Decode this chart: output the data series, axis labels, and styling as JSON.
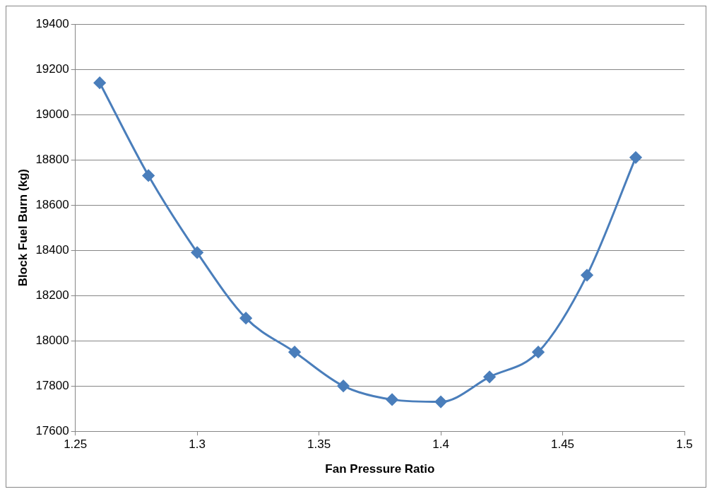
{
  "chart_data": {
    "type": "line",
    "xlabel": "Fan Pressure Ratio",
    "ylabel": "Block Fuel Burn (kg)",
    "x": [
      1.26,
      1.28,
      1.3,
      1.32,
      1.34,
      1.36,
      1.38,
      1.4,
      1.42,
      1.44,
      1.46,
      1.48
    ],
    "series": [
      {
        "color": "#4a7ebb",
        "values": [
          19140,
          18730,
          18390,
          18100,
          17950,
          17800,
          17740,
          17730,
          17840,
          17950,
          18290,
          18810
        ]
      }
    ],
    "xlim": [
      1.25,
      1.5
    ],
    "xticks": [
      1.25,
      1.3,
      1.35,
      1.4,
      1.45,
      1.5
    ],
    "ylim": [
      17600,
      19400
    ],
    "yticks": [
      17600,
      17800,
      18000,
      18200,
      18400,
      18600,
      18800,
      19000,
      19200,
      19400
    ],
    "grid": "y",
    "legend": false,
    "marker": "diamond",
    "line_style": "solid"
  }
}
